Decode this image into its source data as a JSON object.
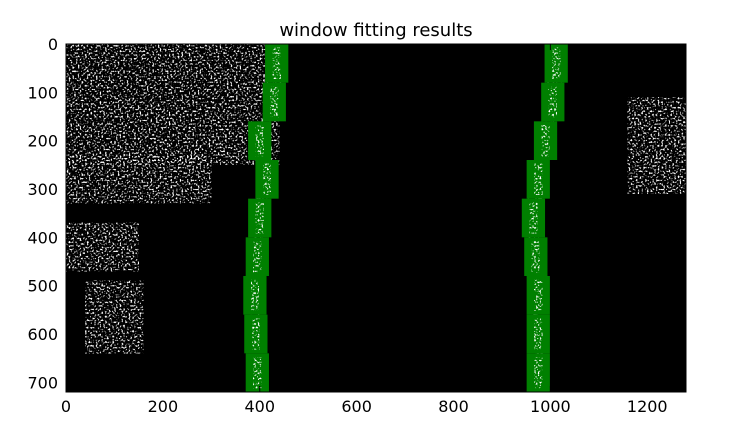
{
  "chart_data": {
    "type": "image",
    "title": "window fitting results",
    "xlabel": "",
    "ylabel": "",
    "xlim": [
      0,
      1280
    ],
    "ylim": [
      720,
      0
    ],
    "xticks": [
      0,
      200,
      400,
      600,
      800,
      1000,
      1200
    ],
    "yticks": [
      0,
      100,
      200,
      300,
      400,
      500,
      600,
      700
    ],
    "background_color": "#000000",
    "pixel_color": "#ffffff",
    "window_color": "#008000",
    "left_lane_windows": [
      {
        "x": 435,
        "y0": 0,
        "y1": 80
      },
      {
        "x": 430,
        "y0": 80,
        "y1": 160
      },
      {
        "x": 400,
        "y0": 160,
        "y1": 240
      },
      {
        "x": 415,
        "y0": 240,
        "y1": 320
      },
      {
        "x": 400,
        "y0": 320,
        "y1": 400
      },
      {
        "x": 395,
        "y0": 400,
        "y1": 480
      },
      {
        "x": 390,
        "y0": 480,
        "y1": 560
      },
      {
        "x": 392,
        "y0": 560,
        "y1": 640
      },
      {
        "x": 395,
        "y0": 640,
        "y1": 720
      }
    ],
    "right_lane_windows": [
      {
        "x": 1012,
        "y0": 0,
        "y1": 80
      },
      {
        "x": 1005,
        "y0": 80,
        "y1": 160
      },
      {
        "x": 990,
        "y0": 160,
        "y1": 240
      },
      {
        "x": 975,
        "y0": 240,
        "y1": 320
      },
      {
        "x": 965,
        "y0": 320,
        "y1": 400
      },
      {
        "x": 970,
        "y0": 400,
        "y1": 480
      },
      {
        "x": 975,
        "y0": 480,
        "y1": 560
      },
      {
        "x": 975,
        "y0": 560,
        "y1": 640
      },
      {
        "x": 975,
        "y0": 640,
        "y1": 720
      }
    ],
    "window_half_width": 24
  }
}
